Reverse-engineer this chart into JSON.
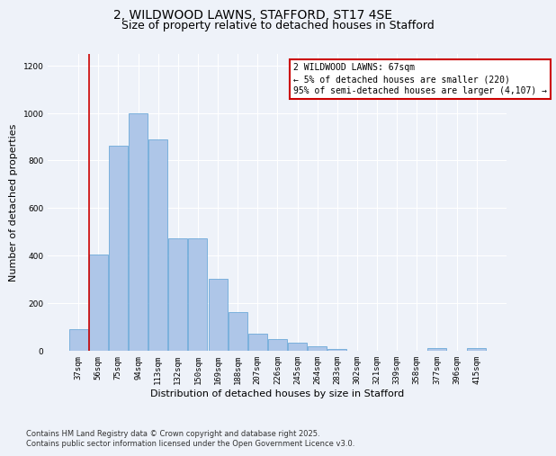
{
  "title": "2, WILDWOOD LAWNS, STAFFORD, ST17 4SE",
  "subtitle": "Size of property relative to detached houses in Stafford",
  "xlabel": "Distribution of detached houses by size in Stafford",
  "ylabel": "Number of detached properties",
  "categories": [
    "37sqm",
    "56sqm",
    "75sqm",
    "94sqm",
    "113sqm",
    "132sqm",
    "150sqm",
    "169sqm",
    "188sqm",
    "207sqm",
    "226sqm",
    "245sqm",
    "264sqm",
    "283sqm",
    "302sqm",
    "321sqm",
    "339sqm",
    "358sqm",
    "377sqm",
    "396sqm",
    "415sqm"
  ],
  "values": [
    90,
    405,
    860,
    1000,
    890,
    470,
    470,
    300,
    160,
    70,
    48,
    32,
    18,
    5,
    0,
    0,
    0,
    0,
    10,
    0,
    10
  ],
  "bar_color": "#aec6e8",
  "bar_edge_color": "#5a9fd4",
  "annotation_line1": "2 WILDWOOD LAWNS: 67sqm",
  "annotation_line2": "← 5% of detached houses are smaller (220)",
  "annotation_line3": "95% of semi-detached houses are larger (4,107) →",
  "annotation_box_color": "#ffffff",
  "annotation_box_edge_color": "#cc0000",
  "vline_color": "#cc0000",
  "ylim": [
    0,
    1250
  ],
  "yticks": [
    0,
    200,
    400,
    600,
    800,
    1000,
    1200
  ],
  "footer": "Contains HM Land Registry data © Crown copyright and database right 2025.\nContains public sector information licensed under the Open Government Licence v3.0.",
  "bg_color": "#eef2f9",
  "grid_color": "#ffffff",
  "title_fontsize": 10,
  "subtitle_fontsize": 9,
  "label_fontsize": 8,
  "tick_fontsize": 6.5,
  "footer_fontsize": 6,
  "annot_fontsize": 7
}
